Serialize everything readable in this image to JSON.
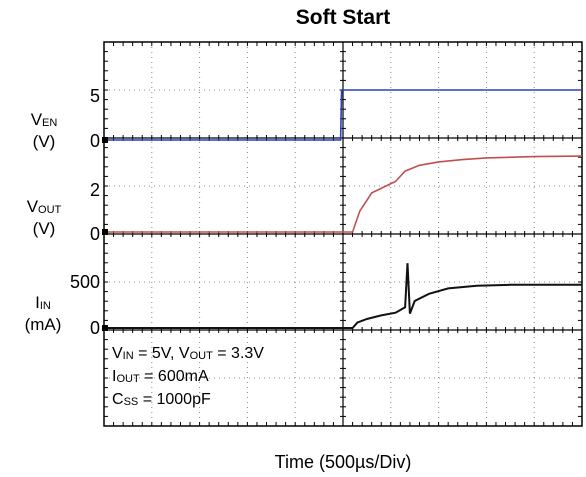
{
  "chart_data": {
    "type": "line",
    "title": "Soft Start",
    "xlabel": "Time (500µs/Div)",
    "x_divisions": 10,
    "panels": [
      {
        "label_main": "V",
        "label_sub": "EN",
        "unit": "(V)",
        "ticks": [
          "5",
          "0"
        ],
        "series": {
          "name": "VEN",
          "color": "#2b3fbf",
          "x": [
            0,
            4.95,
            4.97,
            10
          ],
          "y": [
            0,
            0,
            5,
            5
          ]
        }
      },
      {
        "label_main": "V",
        "label_sub": "OUT",
        "unit": "(V)",
        "ticks": [
          "2",
          "0"
        ],
        "series": {
          "name": "VOUT",
          "color": "#c0504d",
          "x": [
            0,
            5.2,
            5.35,
            5.6,
            5.9,
            6.1,
            6.3,
            6.6,
            7.0,
            7.5,
            8.0,
            9.0,
            10
          ],
          "y": [
            0,
            0,
            0.9,
            1.7,
            2.0,
            2.2,
            2.65,
            2.9,
            3.05,
            3.15,
            3.22,
            3.28,
            3.3
          ]
        }
      },
      {
        "label_main": "I",
        "label_sub": "IN",
        "unit": "(mA)",
        "ticks": [
          "500",
          "0"
        ],
        "series": {
          "name": "IIN",
          "color": "#111111",
          "x": [
            0,
            5.2,
            5.3,
            5.5,
            5.8,
            6.1,
            6.3,
            6.35,
            6.4,
            6.5,
            6.8,
            7.2,
            7.8,
            8.5,
            10
          ],
          "y": [
            0,
            0,
            60,
            100,
            140,
            170,
            230,
            720,
            160,
            300,
            380,
            440,
            470,
            480,
            480
          ]
        }
      }
    ],
    "annotations": [
      {
        "parts": [
          [
            "V",
            "IN",
            " = 5V, "
          ],
          [
            "V",
            "OUT",
            " = 3.3V"
          ]
        ]
      },
      {
        "parts": [
          [
            "I",
            "OUT",
            " = 600mA"
          ]
        ]
      },
      {
        "parts": [
          [
            "C",
            "SS",
            " = 1000pF"
          ]
        ]
      }
    ]
  }
}
